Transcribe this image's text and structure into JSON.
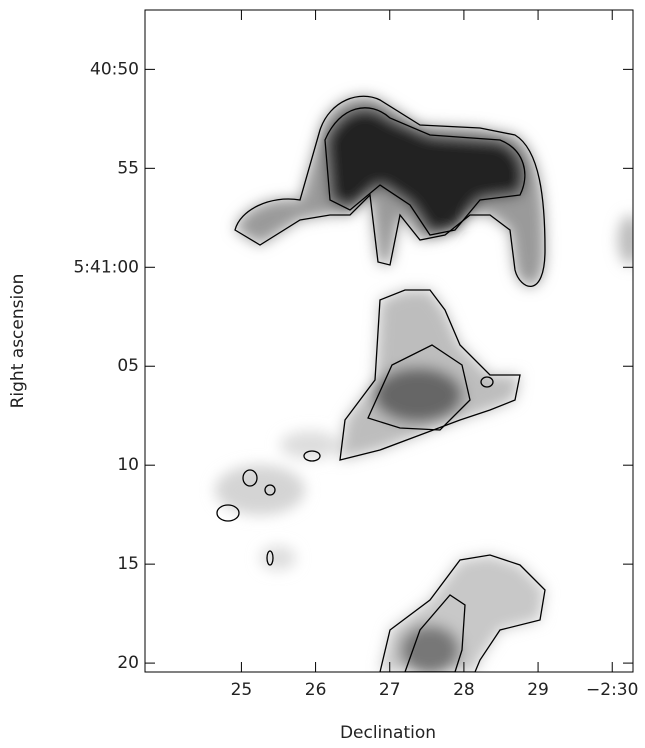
{
  "chart_data": {
    "type": "image",
    "xlabel": "Declination",
    "ylabel": "Right ascension",
    "xlim": [
      23.7,
      30.28
    ],
    "xticks": [
      25,
      26,
      27,
      28,
      29,
      {
        "value": 30,
        "label": "−2:30"
      }
    ],
    "ylim": [
      47,
      80.45
    ],
    "yticks": [
      {
        "value": 50,
        "label": "40:50"
      },
      55,
      {
        "value": 60,
        "label": "5:41:00"
      },
      {
        "value": 65,
        "label": "05"
      },
      {
        "value": 70,
        "label": "10"
      },
      {
        "value": 75,
        "label": "15"
      },
      {
        "value": 80,
        "label": "20"
      }
    ]
  }
}
